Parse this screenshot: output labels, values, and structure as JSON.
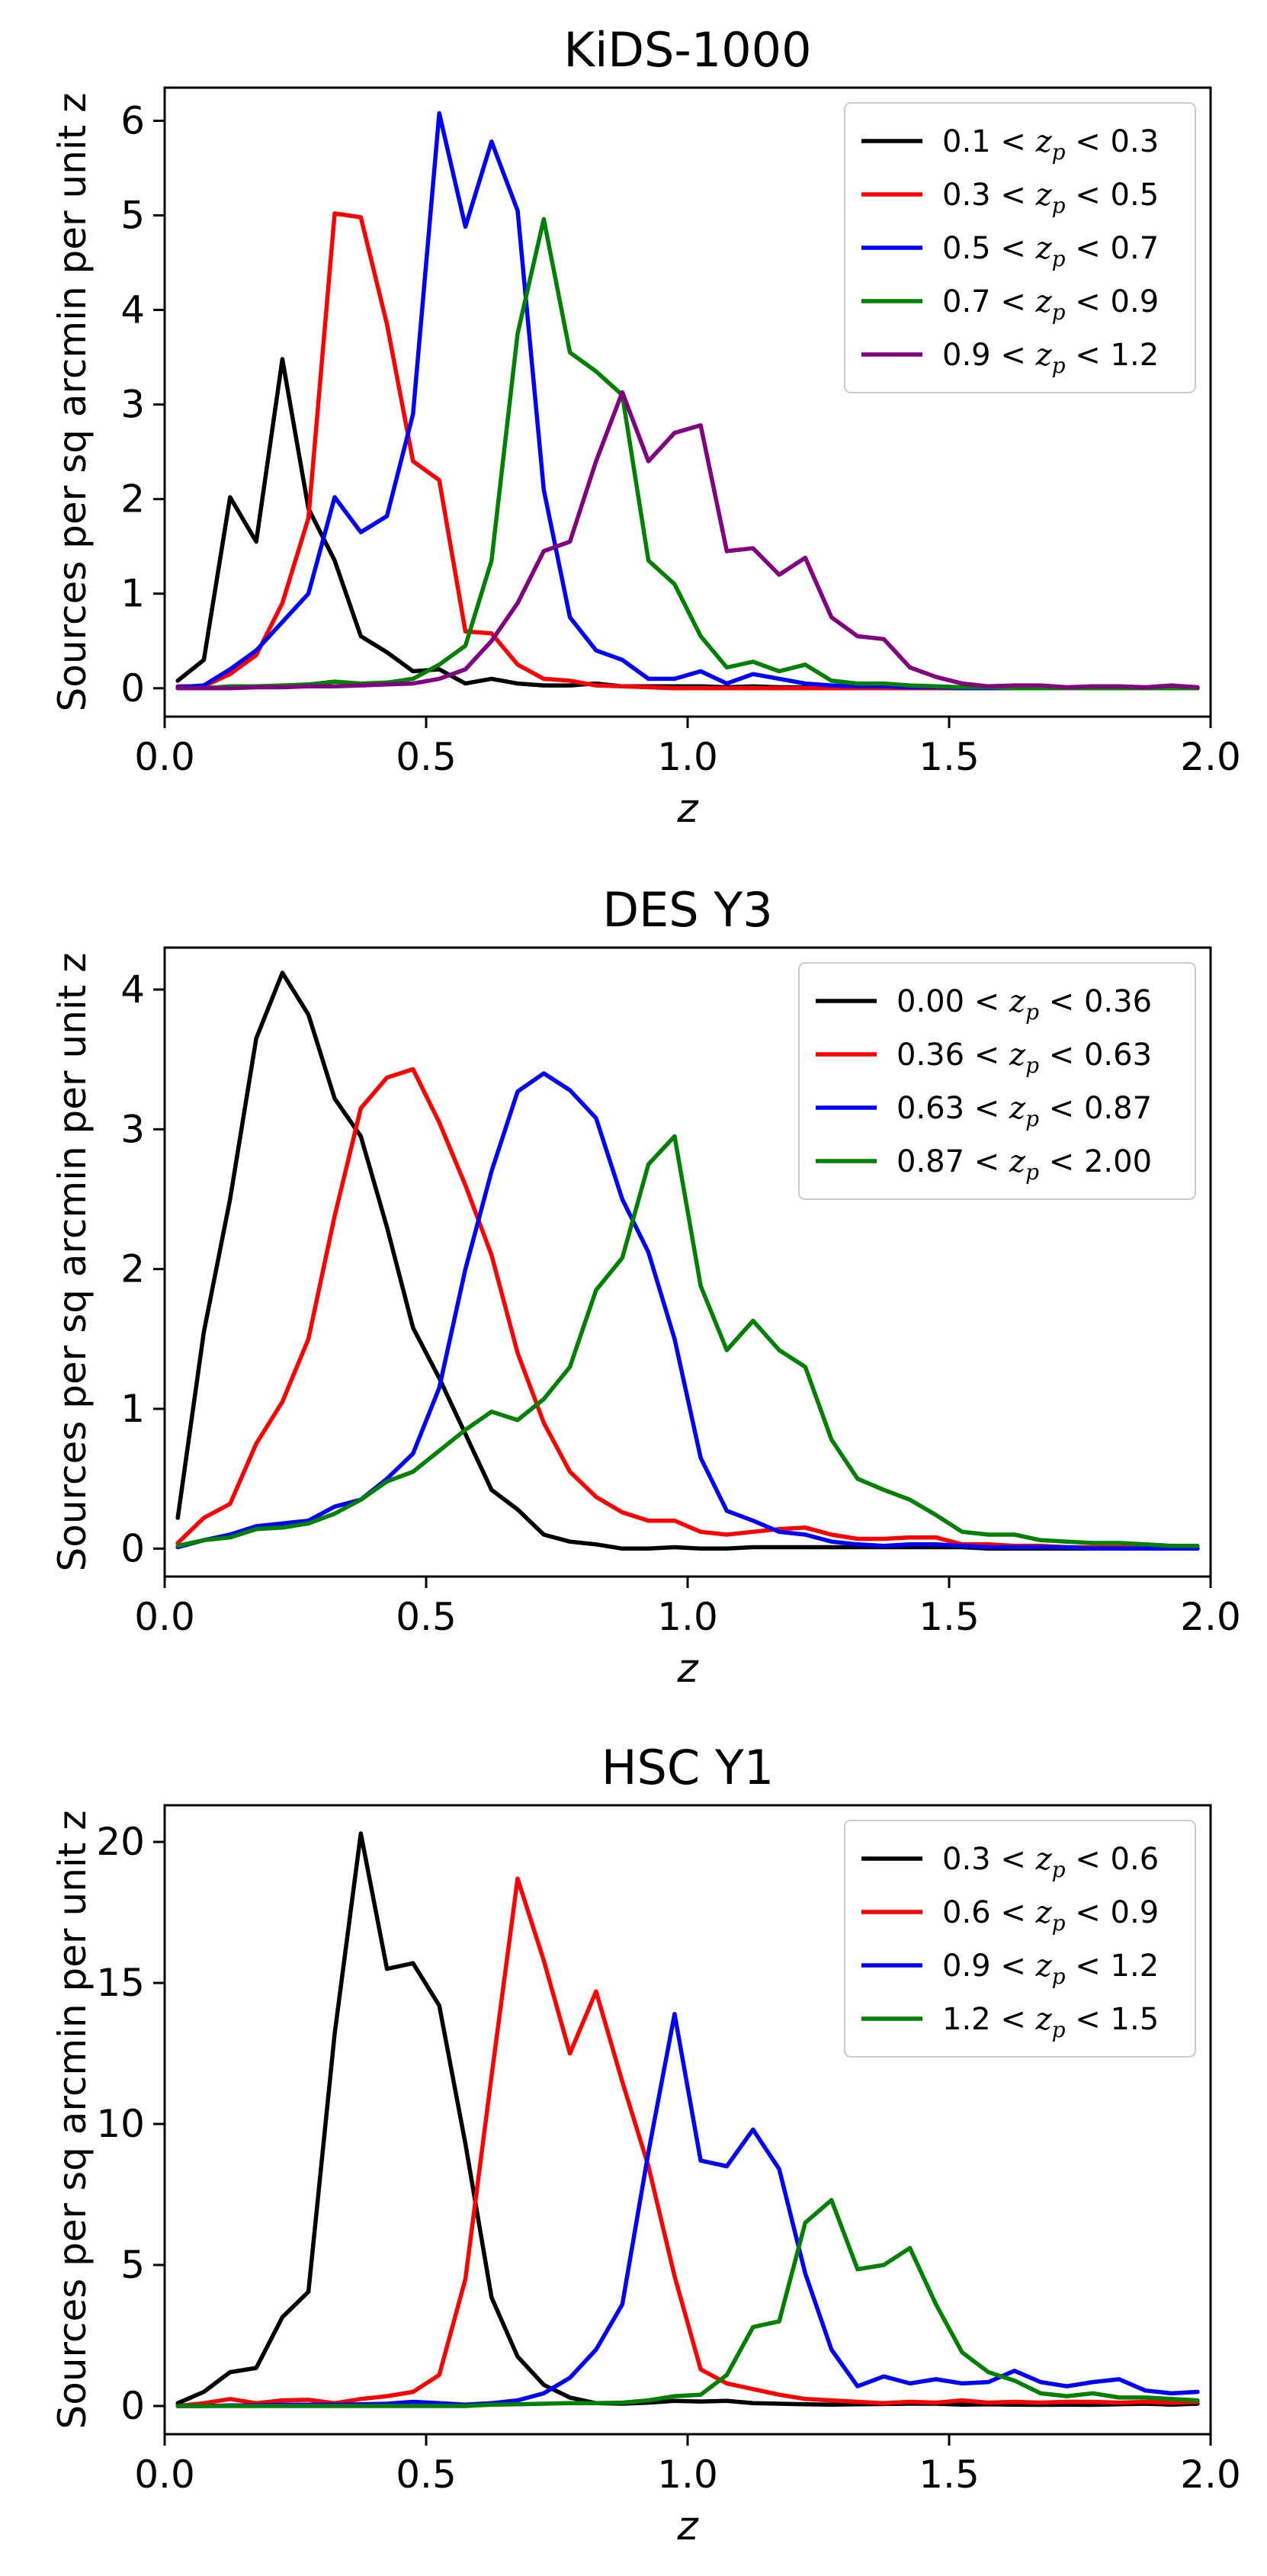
{
  "chart_data": [
    {
      "type": "line",
      "title": "KiDS-1000",
      "xlabel": "z",
      "ylabel": "Sources per sq arcmin per unit z",
      "xlim": [
        0.0,
        2.0
      ],
      "ylim": [
        -0.3,
        6.35
      ],
      "xticks": [
        0.0,
        0.5,
        1.0,
        1.5,
        2.0
      ],
      "xtick_labels": [
        "0.0",
        "0.5",
        "1.0",
        "1.5",
        "2.0"
      ],
      "yticks": [
        0,
        1,
        2,
        3,
        4,
        5,
        6
      ],
      "ytick_labels": [
        "0",
        "1",
        "2",
        "3",
        "4",
        "5",
        "6"
      ],
      "legend_position": "top-right",
      "x": [
        0.025,
        0.075,
        0.125,
        0.175,
        0.225,
        0.275,
        0.325,
        0.375,
        0.425,
        0.475,
        0.525,
        0.575,
        0.625,
        0.675,
        0.725,
        0.775,
        0.825,
        0.875,
        0.925,
        0.975,
        1.025,
        1.075,
        1.125,
        1.175,
        1.225,
        1.275,
        1.325,
        1.375,
        1.425,
        1.475,
        1.525,
        1.575,
        1.625,
        1.675,
        1.725,
        1.775,
        1.825,
        1.875,
        1.925,
        1.975
      ],
      "series": [
        {
          "name": "0.1 < z_p < 0.3",
          "label": {
            "pre": "0.1 < ",
            "post": " < 0.3"
          },
          "color": "#000000",
          "values": [
            0.08,
            0.3,
            2.02,
            1.55,
            3.48,
            1.9,
            1.35,
            0.55,
            0.38,
            0.18,
            0.2,
            0.05,
            0.1,
            0.05,
            0.03,
            0.03,
            0.05,
            0.02,
            0.02,
            0.02,
            0.02,
            0.01,
            0.02,
            0.01,
            0.01,
            0.01,
            0.01,
            0.01,
            0.01,
            0.0,
            0.0,
            0.0,
            0.0,
            0.0,
            0.0,
            0.0,
            0.0,
            0.0,
            0.0,
            0.0
          ]
        },
        {
          "name": "0.3 < z_p < 0.5",
          "label": {
            "pre": "0.3 < ",
            "post": " < 0.5"
          },
          "color": "#ff0000",
          "values": [
            0.02,
            0.02,
            0.15,
            0.35,
            0.9,
            1.8,
            5.02,
            4.98,
            3.85,
            2.4,
            2.2,
            0.6,
            0.58,
            0.25,
            0.1,
            0.08,
            0.03,
            0.02,
            0.01,
            0.0,
            0.0,
            0.0,
            0.0,
            0.0,
            0.0,
            0.0,
            0.0,
            0.0,
            0.0,
            0.0,
            0.0,
            0.0,
            0.0,
            0.0,
            0.0,
            0.0,
            0.0,
            0.0,
            0.0,
            0.0
          ]
        },
        {
          "name": "0.5 < z_p < 0.7",
          "label": {
            "pre": "0.5 < ",
            "post": " < 0.7"
          },
          "color": "#0000ff",
          "values": [
            0.01,
            0.03,
            0.2,
            0.4,
            0.7,
            1.0,
            2.02,
            1.65,
            1.82,
            2.9,
            6.08,
            4.88,
            5.78,
            5.05,
            2.1,
            0.75,
            0.4,
            0.3,
            0.1,
            0.1,
            0.18,
            0.05,
            0.15,
            0.1,
            0.05,
            0.03,
            0.02,
            0.02,
            0.01,
            0.01,
            0.0,
            0.0,
            0.0,
            0.0,
            0.0,
            0.0,
            0.0,
            0.0,
            0.0,
            0.0
          ]
        },
        {
          "name": "0.7 < z_p < 0.9",
          "label": {
            "pre": "0.7 < ",
            "post": " < 0.9"
          },
          "color": "#008000",
          "values": [
            0.0,
            0.0,
            0.02,
            0.02,
            0.03,
            0.04,
            0.07,
            0.05,
            0.06,
            0.1,
            0.25,
            0.45,
            1.35,
            3.75,
            4.96,
            3.55,
            3.35,
            3.1,
            1.35,
            1.1,
            0.55,
            0.22,
            0.28,
            0.18,
            0.25,
            0.08,
            0.05,
            0.05,
            0.03,
            0.02,
            0.01,
            0.01,
            0.0,
            0.0,
            0.0,
            0.0,
            0.0,
            0.0,
            0.0,
            0.0
          ]
        },
        {
          "name": "0.9 < z_p < 1.2",
          "label": {
            "pre": "0.9 < ",
            "post": " < 1.2"
          },
          "color": "#800080",
          "values": [
            0.0,
            0.0,
            0.0,
            0.01,
            0.01,
            0.02,
            0.02,
            0.03,
            0.04,
            0.05,
            0.1,
            0.2,
            0.5,
            0.9,
            1.45,
            1.55,
            2.4,
            3.13,
            2.4,
            2.7,
            2.78,
            1.45,
            1.48,
            1.2,
            1.38,
            0.75,
            0.55,
            0.52,
            0.22,
            0.12,
            0.05,
            0.02,
            0.03,
            0.03,
            0.01,
            0.02,
            0.02,
            0.01,
            0.03,
            0.01
          ]
        }
      ]
    },
    {
      "type": "line",
      "title": "DES Y3",
      "xlabel": "z",
      "ylabel": "Sources per sq arcmin per unit z",
      "xlim": [
        0.0,
        2.0
      ],
      "ylim": [
        -0.2,
        4.3
      ],
      "xticks": [
        0.0,
        0.5,
        1.0,
        1.5,
        2.0
      ],
      "xtick_labels": [
        "0.0",
        "0.5",
        "1.0",
        "1.5",
        "2.0"
      ],
      "yticks": [
        0,
        1,
        2,
        3,
        4
      ],
      "ytick_labels": [
        "0",
        "1",
        "2",
        "3",
        "4"
      ],
      "legend_position": "top-right",
      "x": [
        0.025,
        0.075,
        0.125,
        0.175,
        0.225,
        0.275,
        0.325,
        0.375,
        0.425,
        0.475,
        0.525,
        0.575,
        0.625,
        0.675,
        0.725,
        0.775,
        0.825,
        0.875,
        0.925,
        0.975,
        1.025,
        1.075,
        1.125,
        1.175,
        1.225,
        1.275,
        1.325,
        1.375,
        1.425,
        1.475,
        1.525,
        1.575,
        1.625,
        1.675,
        1.725,
        1.775,
        1.825,
        1.875,
        1.925,
        1.975
      ],
      "series": [
        {
          "name": "0.00 < z_p < 0.36",
          "label": {
            "pre": "0.00 < ",
            "post": " < 0.36"
          },
          "color": "#000000",
          "values": [
            0.22,
            1.55,
            2.5,
            3.65,
            4.12,
            3.82,
            3.22,
            2.95,
            2.3,
            1.58,
            1.22,
            0.82,
            0.42,
            0.28,
            0.1,
            0.05,
            0.03,
            0.0,
            0.0,
            0.01,
            0.0,
            0.0,
            0.01,
            0.01,
            0.01,
            0.01,
            0.01,
            0.01,
            0.01,
            0.01,
            0.01,
            0.0,
            0.0,
            0.0,
            0.0,
            0.0,
            0.0,
            0.0,
            0.0,
            0.0
          ]
        },
        {
          "name": "0.36 < z_p < 0.63",
          "label": {
            "pre": "0.36 < ",
            "post": " < 0.63"
          },
          "color": "#ff0000",
          "values": [
            0.04,
            0.22,
            0.32,
            0.75,
            1.05,
            1.5,
            2.38,
            3.15,
            3.37,
            3.43,
            3.05,
            2.6,
            2.1,
            1.4,
            0.9,
            0.55,
            0.37,
            0.26,
            0.2,
            0.2,
            0.12,
            0.1,
            0.12,
            0.14,
            0.15,
            0.1,
            0.07,
            0.07,
            0.08,
            0.08,
            0.03,
            0.03,
            0.02,
            0.02,
            0.01,
            0.01,
            0.01,
            0.0,
            0.0,
            0.0
          ]
        },
        {
          "name": "0.63 < z_p < 0.87",
          "label": {
            "pre": "0.63 < ",
            "post": " < 0.87"
          },
          "color": "#0000ff",
          "values": [
            0.01,
            0.06,
            0.1,
            0.16,
            0.18,
            0.2,
            0.3,
            0.35,
            0.5,
            0.68,
            1.15,
            2.0,
            2.7,
            3.27,
            3.4,
            3.28,
            3.08,
            2.5,
            2.12,
            1.5,
            0.65,
            0.27,
            0.2,
            0.12,
            0.1,
            0.05,
            0.03,
            0.02,
            0.03,
            0.03,
            0.02,
            0.01,
            0.01,
            0.01,
            0.01,
            0.0,
            0.0,
            0.0,
            0.0,
            0.0
          ]
        },
        {
          "name": "0.87 < z_p < 2.00",
          "label": {
            "pre": "0.87 < ",
            "post": " < 2.00"
          },
          "color": "#008000",
          "values": [
            0.02,
            0.06,
            0.08,
            0.14,
            0.15,
            0.18,
            0.25,
            0.35,
            0.48,
            0.55,
            0.7,
            0.85,
            0.98,
            0.92,
            1.07,
            1.3,
            1.85,
            2.08,
            2.75,
            2.95,
            1.88,
            1.42,
            1.63,
            1.42,
            1.3,
            0.78,
            0.5,
            0.42,
            0.35,
            0.24,
            0.12,
            0.1,
            0.1,
            0.06,
            0.05,
            0.04,
            0.04,
            0.03,
            0.02,
            0.02
          ]
        }
      ]
    },
    {
      "type": "line",
      "title": "HSC Y1",
      "xlabel": "z",
      "ylabel": "Sources per sq arcmin per unit z",
      "xlim": [
        0.0,
        2.0
      ],
      "ylim": [
        -1.0,
        21.3
      ],
      "xticks": [
        0.0,
        0.5,
        1.0,
        1.5,
        2.0
      ],
      "xtick_labels": [
        "0.0",
        "0.5",
        "1.0",
        "1.5",
        "2.0"
      ],
      "yticks": [
        0,
        5,
        10,
        15,
        20
      ],
      "ytick_labels": [
        "0",
        "5",
        "10",
        "15",
        "20"
      ],
      "legend_position": "top-right",
      "x": [
        0.025,
        0.075,
        0.125,
        0.175,
        0.225,
        0.275,
        0.325,
        0.375,
        0.425,
        0.475,
        0.525,
        0.575,
        0.625,
        0.675,
        0.725,
        0.775,
        0.825,
        0.875,
        0.925,
        0.975,
        1.025,
        1.075,
        1.125,
        1.175,
        1.225,
        1.275,
        1.325,
        1.375,
        1.425,
        1.475,
        1.525,
        1.575,
        1.625,
        1.675,
        1.725,
        1.775,
        1.825,
        1.875,
        1.925,
        1.975
      ],
      "series": [
        {
          "name": "0.3 < z_p < 0.6",
          "label": {
            "pre": "0.3 < ",
            "post": " < 0.6"
          },
          "color": "#000000",
          "values": [
            0.1,
            0.5,
            1.2,
            1.35,
            3.15,
            4.05,
            13.2,
            20.3,
            15.5,
            15.7,
            14.2,
            9.3,
            3.85,
            1.75,
            0.75,
            0.3,
            0.1,
            0.08,
            0.12,
            0.18,
            0.16,
            0.18,
            0.1,
            0.08,
            0.06,
            0.05,
            0.06,
            0.07,
            0.08,
            0.08,
            0.05,
            0.06,
            0.05,
            0.04,
            0.05,
            0.04,
            0.06,
            0.08,
            0.05,
            0.08
          ]
        },
        {
          "name": "0.6 < z_p < 0.9",
          "label": {
            "pre": "0.6 < ",
            "post": " < 0.9"
          },
          "color": "#ff0000",
          "values": [
            0.0,
            0.1,
            0.25,
            0.1,
            0.2,
            0.22,
            0.1,
            0.25,
            0.35,
            0.5,
            1.1,
            4.5,
            11.7,
            18.7,
            15.8,
            12.5,
            14.7,
            11.5,
            8.5,
            4.6,
            1.3,
            0.8,
            0.6,
            0.4,
            0.25,
            0.2,
            0.15,
            0.1,
            0.15,
            0.12,
            0.2,
            0.12,
            0.15,
            0.12,
            0.15,
            0.15,
            0.12,
            0.15,
            0.12,
            0.15
          ]
        },
        {
          "name": "0.9 < z_p < 1.2",
          "label": {
            "pre": "0.9 < ",
            "post": " < 1.2"
          },
          "color": "#0000ff",
          "values": [
            0.0,
            0.0,
            0.02,
            0.02,
            0.05,
            0.05,
            0.05,
            0.06,
            0.08,
            0.15,
            0.1,
            0.05,
            0.1,
            0.2,
            0.45,
            1.0,
            2.0,
            3.6,
            9.0,
            13.9,
            8.7,
            8.5,
            9.8,
            8.4,
            4.7,
            2.0,
            0.7,
            1.05,
            0.8,
            0.95,
            0.8,
            0.85,
            1.25,
            0.85,
            0.7,
            0.85,
            0.95,
            0.55,
            0.45,
            0.5
          ]
        },
        {
          "name": "1.2 < z_p < 1.5",
          "label": {
            "pre": "1.2 < ",
            "post": " < 1.5"
          },
          "color": "#008000",
          "values": [
            0.0,
            0.0,
            0.0,
            0.0,
            0.0,
            0.0,
            0.0,
            0.0,
            0.0,
            0.0,
            0.0,
            0.0,
            0.05,
            0.06,
            0.08,
            0.1,
            0.1,
            0.12,
            0.2,
            0.35,
            0.4,
            1.1,
            2.8,
            3.0,
            6.5,
            7.3,
            4.85,
            5.0,
            5.6,
            3.6,
            1.9,
            1.2,
            0.9,
            0.45,
            0.35,
            0.45,
            0.3,
            0.3,
            0.25,
            0.2
          ]
        }
      ]
    }
  ]
}
